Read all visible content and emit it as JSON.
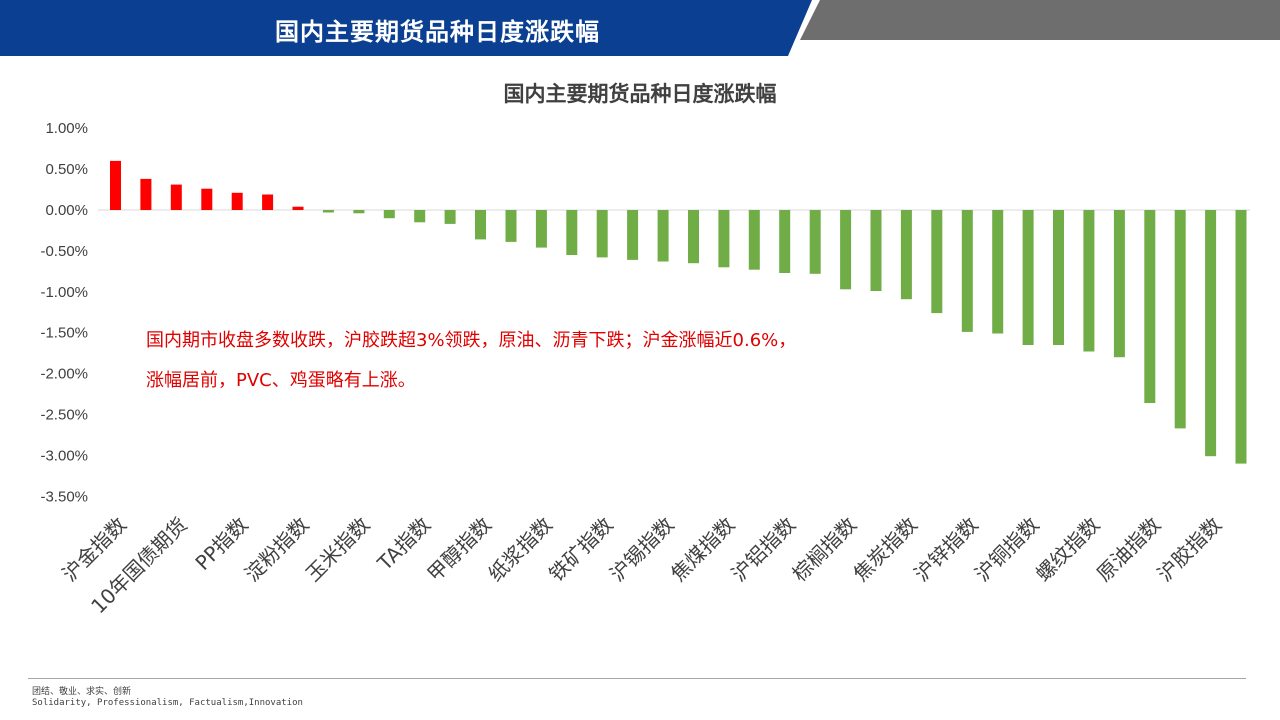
{
  "header": {
    "title": "国内主要期货品种日度涨跌幅"
  },
  "colors": {
    "header_blue": "#0b3f91",
    "header_gray": "#6b6b6b",
    "up": "#ff0000",
    "down": "#70ad47",
    "annotation": "#e00000"
  },
  "annotation": {
    "line1": "国内期市收盘多数收跌，沪胶跌超3%领跌，原油、沥青下跌；沪金涨幅近0.6%，",
    "line2": "涨幅居前，PVC、鸡蛋略有上涨。"
  },
  "footer": {
    "cn": "团结、敬业、求实、创新",
    "en": "Solidarity, Professionalism, Factualism,Innovation"
  },
  "chart_data": {
    "type": "bar",
    "title": "国内主要期货品种日度涨跌幅",
    "ylim": [
      -3.5,
      1.0
    ],
    "yticks": [
      1.0,
      0.5,
      0.0,
      -0.5,
      -1.0,
      -1.5,
      -2.0,
      -2.5,
      -3.0,
      -3.5
    ],
    "ytick_labels": [
      "1.00%",
      "0.50%",
      "0.00%",
      "-0.50%",
      "-1.00%",
      "-1.50%",
      "-2.00%",
      "-2.50%",
      "-3.00%",
      "-3.50%"
    ],
    "values": [
      0.6,
      0.38,
      0.31,
      0.26,
      0.21,
      0.19,
      0.04,
      -0.03,
      -0.04,
      -0.1,
      -0.15,
      -0.17,
      -0.36,
      -0.39,
      -0.46,
      -0.55,
      -0.58,
      -0.61,
      -0.63,
      -0.65,
      -0.7,
      -0.73,
      -0.77,
      -0.78,
      -0.97,
      -0.99,
      -1.09,
      -1.26,
      -1.49,
      -1.51,
      -1.65,
      -1.65,
      -1.73,
      -1.8,
      -2.36,
      -2.67,
      -3.01,
      -3.1
    ],
    "category_labels": [
      "沪金指数",
      "10年国债期货",
      "PP指数",
      "淀粉指数",
      "玉米指数",
      "TA指数",
      "甲醇指数",
      "纸浆指数",
      "铁矿指数",
      "沪锡指数",
      "焦煤指数",
      "沪铝指数",
      "棕榈指数",
      "焦炭指数",
      "沪锌指数",
      "沪铜指数",
      "螺纹指数",
      "原油指数",
      "沪胶指数"
    ]
  }
}
